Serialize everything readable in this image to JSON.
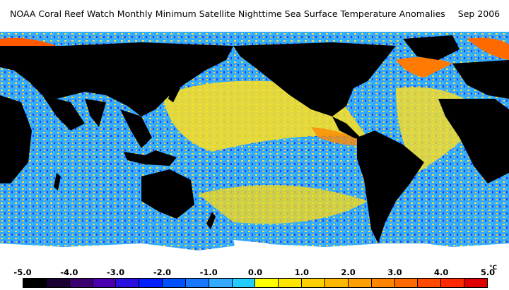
{
  "title": {
    "text": "NOAA Coral Reef Watch Monthly Minimum Satellite Nighttime Sea Surface Temperature Anomalies",
    "date": "Sep 2006"
  },
  "colorbar": {
    "unit": "°C",
    "tick_labels": [
      "-5.0",
      "-4.0",
      "-3.0",
      "-2.0",
      "-1.0",
      "0.0",
      "1.0",
      "2.0",
      "3.0",
      "4.0",
      "5.0"
    ],
    "swatches": [
      "#000000",
      "#1a0033",
      "#3a0070",
      "#4a00b0",
      "#2a10e0",
      "#0020ff",
      "#0050ff",
      "#1a78ff",
      "#33aaff",
      "#22ccff",
      "#ffff00",
      "#ffe600",
      "#ffd000",
      "#ffb800",
      "#ffa000",
      "#ff8400",
      "#ff6a00",
      "#ff4a00",
      "#ff2a00",
      "#e00000"
    ]
  },
  "map": {
    "land_color": "#000000",
    "ice_color": "#ffffff",
    "ocean_cool_color": "#22a0ff",
    "ocean_warm_color": "#ffe020",
    "ocean_hot_color": "#ff7000"
  }
}
